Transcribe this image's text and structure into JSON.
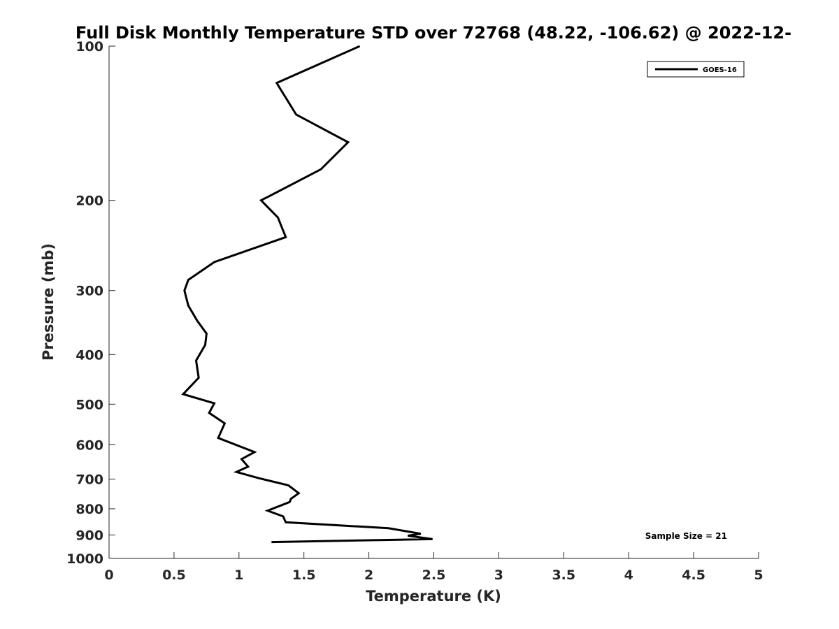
{
  "chart_data": {
    "type": "line",
    "title": "Full Disk Monthly Temperature STD over 72768 (48.22, -106.62) @ 2022-12-",
    "xlabel": "Temperature (K)",
    "ylabel": "Pressure (mb)",
    "xlim": [
      0,
      5
    ],
    "ylim": [
      100,
      1000
    ],
    "yscale": "log",
    "yreversed": true,
    "xticks": [
      "0",
      "0.5",
      "1",
      "1.5",
      "2",
      "2.5",
      "3",
      "3.5",
      "4",
      "4.5",
      "5"
    ],
    "yticks": [
      "100",
      "200",
      "300",
      "400",
      "500",
      "600",
      "700",
      "800",
      "900",
      "1000"
    ],
    "grid": false,
    "legend_position": "top-right",
    "annotation": "Sample Size = 21",
    "series": [
      {
        "name": "GOES-16",
        "color": "#000000",
        "points": [
          [
            1.93,
            100
          ],
          [
            1.29,
            118
          ],
          [
            1.44,
            136
          ],
          [
            1.84,
            154
          ],
          [
            1.63,
            174
          ],
          [
            1.17,
            200
          ],
          [
            1.3,
            216
          ],
          [
            1.36,
            236
          ],
          [
            0.81,
            264
          ],
          [
            0.61,
            286
          ],
          [
            0.58,
            300
          ],
          [
            0.61,
            321
          ],
          [
            0.68,
            344
          ],
          [
            0.75,
            364
          ],
          [
            0.74,
            383
          ],
          [
            0.67,
            411
          ],
          [
            0.68,
            427
          ],
          [
            0.69,
            444
          ],
          [
            0.57,
            478
          ],
          [
            0.81,
            498
          ],
          [
            0.77,
            520
          ],
          [
            0.89,
            545
          ],
          [
            0.84,
            582
          ],
          [
            1.12,
            620
          ],
          [
            1.02,
            640
          ],
          [
            1.07,
            662
          ],
          [
            0.98,
            678
          ],
          [
            1.15,
            697
          ],
          [
            1.38,
            720
          ],
          [
            1.46,
            746
          ],
          [
            1.4,
            765
          ],
          [
            1.39,
            776
          ],
          [
            1.22,
            807
          ],
          [
            1.34,
            828
          ],
          [
            1.36,
            850
          ],
          [
            2.15,
            873
          ],
          [
            2.4,
            895
          ],
          [
            2.3,
            903
          ],
          [
            2.49,
            917
          ],
          [
            1.25,
            929
          ]
        ]
      }
    ]
  }
}
